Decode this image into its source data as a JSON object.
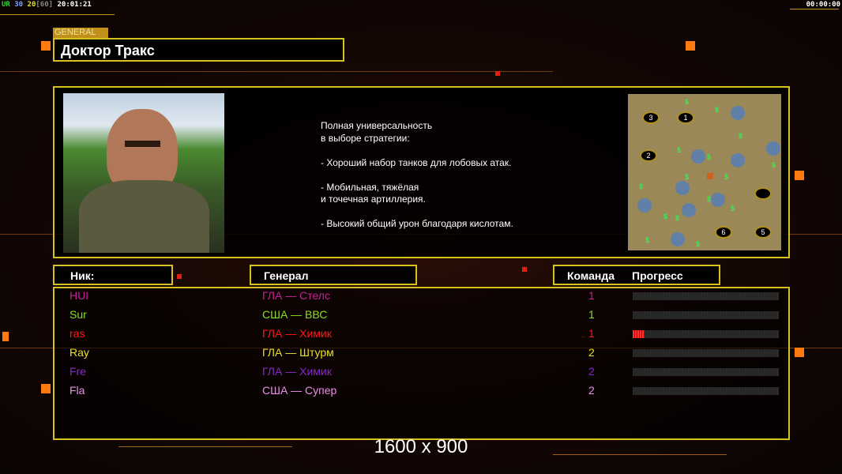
{
  "hud": {
    "ur": "UR",
    "fps1": "30",
    "fps2": "20",
    "fps_cap": "[60]",
    "clock": "20:01:21",
    "timer": "00:00:00"
  },
  "general": {
    "tag": "GENERAL",
    "name": "Доктор Тракс",
    "description": [
      "Полная универсальность",
      "в выборе стратегии:",
      "",
      "- Хороший набор танков для лобовых атак.",
      "",
      "- Мобильная, тяжёлая",
      "и точечная артиллерия.",
      "",
      "- Высокий общий урон благодаря кислотам."
    ]
  },
  "minimap": {
    "start_positions": [
      "1",
      "2",
      "3",
      "5",
      "6"
    ],
    "money_marker": "$"
  },
  "headers": {
    "nick": "Ник:",
    "general": "Генерал",
    "team": "Команда",
    "progress": "Прогресс"
  },
  "players": [
    {
      "nick": "HUI",
      "general": "ГЛА — Стелс",
      "team": "1",
      "progress": 0,
      "color": "#c8209a"
    },
    {
      "nick": "Sur",
      "general": "США — ВВС",
      "team": "1",
      "progress": 0,
      "color": "#88e020"
    },
    {
      "nick": "ras",
      "general": "ГЛА — Химик",
      "team": "1",
      "progress": 8,
      "color": "#ff1818"
    },
    {
      "nick": "Ray",
      "general": "ГЛА — Штурм",
      "team": "2",
      "progress": 0,
      "color": "#e8e028"
    },
    {
      "nick": "Fre",
      "general": "ГЛА — Химик",
      "team": "2",
      "progress": 0,
      "color": "#8828c8"
    },
    {
      "nick": "Fla",
      "general": "США — Супер",
      "team": "2",
      "progress": 0,
      "color": "#e890e8"
    }
  ],
  "resolution": "1600 x 900"
}
